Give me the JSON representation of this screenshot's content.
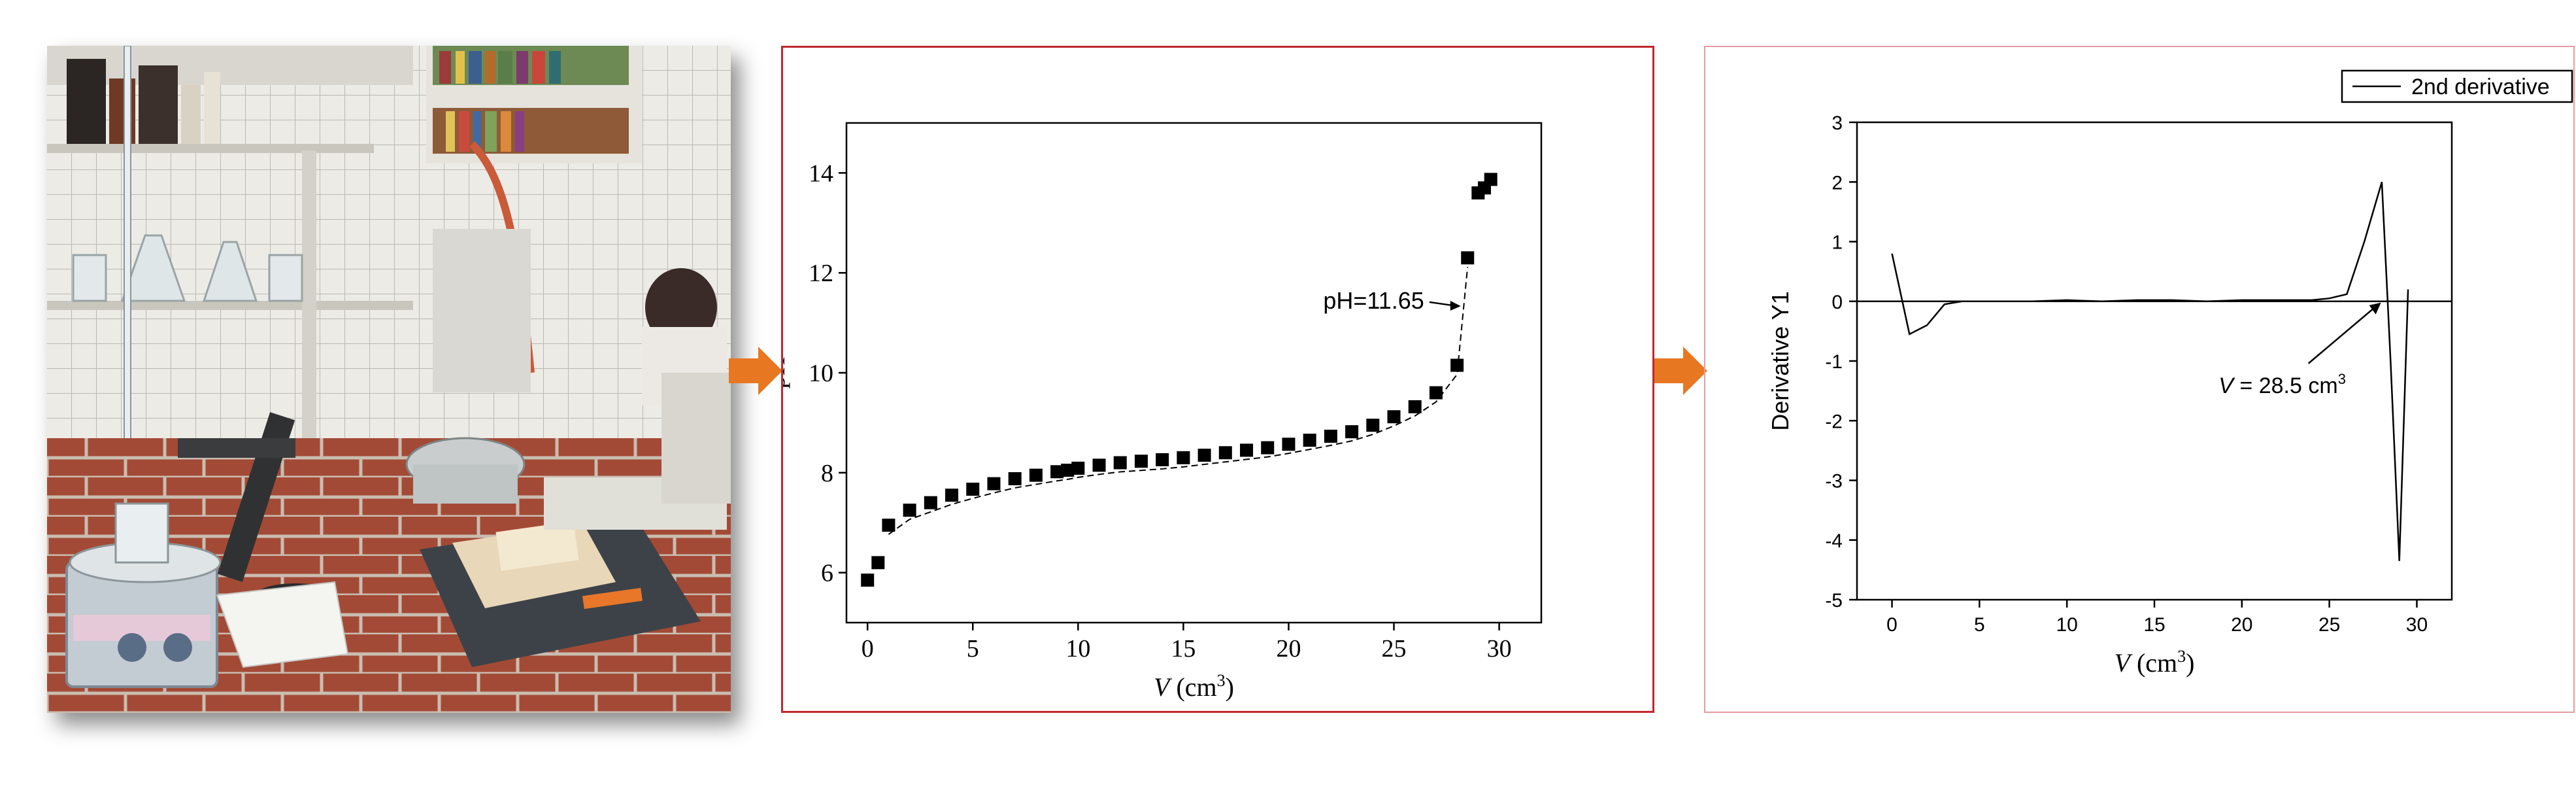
{
  "arrow_color": "#e87722",
  "frame_colors": {
    "middle": "#c1272d",
    "right": "#e79aa0"
  },
  "chart_data": [
    {
      "type": "scatter",
      "title": "",
      "xlabel": "V (cm³)",
      "xlabel_parts": {
        "var": "V",
        "unit_open": " (cm",
        "unit_sup": "3",
        "unit_close": ")"
      },
      "ylabel": "pH",
      "xlim": [
        -1,
        32
      ],
      "ylim": [
        5,
        15
      ],
      "xticks": [
        0,
        5,
        10,
        15,
        20,
        25,
        30
      ],
      "yticks": [
        6,
        8,
        10,
        12,
        14
      ],
      "annotation": {
        "text": "pH=11.65",
        "target": [
          28.3,
          11.65
        ]
      },
      "marker": "square",
      "x": [
        0,
        0.5,
        1,
        2,
        3,
        4,
        5,
        6,
        7,
        8,
        9,
        9.5,
        10,
        11,
        12,
        13,
        14,
        15,
        16,
        17,
        18,
        19,
        20,
        21,
        22,
        23,
        24,
        25,
        26,
        27,
        28,
        28.5,
        29,
        29.3,
        29.6
      ],
      "y": [
        5.85,
        6.2,
        6.95,
        7.25,
        7.4,
        7.55,
        7.67,
        7.78,
        7.88,
        7.95,
        8.02,
        8.05,
        8.09,
        8.15,
        8.2,
        8.23,
        8.26,
        8.3,
        8.35,
        8.4,
        8.45,
        8.5,
        8.57,
        8.65,
        8.73,
        8.82,
        8.95,
        9.12,
        9.32,
        9.6,
        10.15,
        12.3,
        13.6,
        13.7,
        13.87
      ]
    },
    {
      "type": "line",
      "title": "",
      "xlabel": "V (cm³)",
      "xlabel_parts": {
        "var": "V",
        "unit_open": " (cm",
        "unit_sup": "3",
        "unit_close": ")"
      },
      "ylabel": "Derivative Y1",
      "xlim": [
        -2,
        32
      ],
      "ylim": [
        -5,
        3
      ],
      "xticks": [
        0,
        5,
        10,
        15,
        20,
        25,
        30
      ],
      "yticks": [
        3,
        2,
        1,
        0,
        -1,
        -2,
        -3,
        -4,
        -5
      ],
      "legend": {
        "position": "top-right",
        "label": "2nd derivative"
      },
      "annotation": {
        "var": "V",
        "text": " = 28.5 cm",
        "sup": "3",
        "target": [
          28.1,
          0
        ]
      },
      "series": [
        {
          "name": "2nd derivative",
          "x": [
            0,
            1,
            2,
            3,
            4,
            5,
            8,
            10,
            12,
            14,
            16,
            18,
            20,
            22,
            24,
            25,
            26,
            27,
            28,
            28.5,
            29,
            29.5
          ],
          "y": [
            0.8,
            -0.55,
            -0.4,
            -0.05,
            0,
            0,
            0,
            0.02,
            0,
            0.02,
            0.02,
            0,
            0.02,
            0.02,
            0.02,
            0.05,
            0.12,
            1.0,
            2.0,
            -1.0,
            -4.35,
            0.2
          ]
        }
      ]
    }
  ]
}
